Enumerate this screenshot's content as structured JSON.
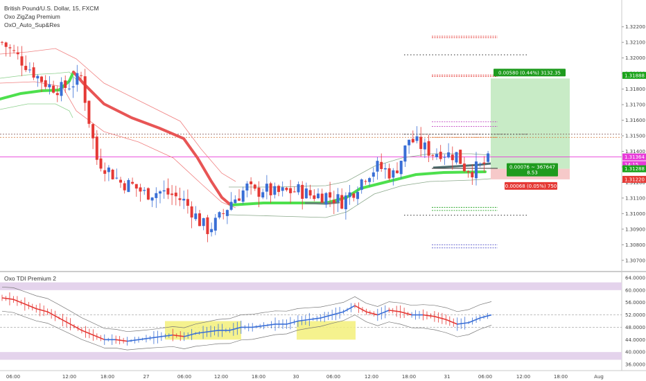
{
  "header": {
    "symbol_line": "British Pound/U.S. Dollar, 15, FXCM",
    "indicator_1": "Oxo ZigZag Premium",
    "indicator_2": "OxO_Auto_Sup&Res"
  },
  "lower_pane": {
    "title": "Oxo TDI Premium 2"
  },
  "colors": {
    "candle_up": "#3a6fd6",
    "candle_down": "#e53935",
    "ema_green": "#4de04d",
    "ema_red": "#e85555",
    "long_target": "#c8ebc6",
    "long_stop": "#f6c9c9",
    "tdi_band": "#e4d3ec",
    "tdi_fill": "#f3f07a"
  },
  "chart_data": [
    {
      "type": "candlestick",
      "title": "British Pound/U.S. Dollar, 15, FXCM",
      "xlabel": "",
      "ylabel": "",
      "ylim": [
        1.3065,
        1.3235
      ],
      "y_ticks": [
        "1.32200",
        "1.32100",
        "1.32000",
        "1.31900",
        "1.31800",
        "1.31700",
        "1.31600",
        "1.31500",
        "1.31400",
        "1.31300",
        "1.31200",
        "1.31100",
        "1.31000",
        "1.30900",
        "1.30800",
        "1.30700"
      ],
      "x_ticks": [
        "06:00",
        "12:00",
        "18:00",
        "27",
        "06:00",
        "12:00",
        "18:00",
        "30",
        "06:00",
        "12:00",
        "18:00",
        "31",
        "06:00",
        "12:00",
        "18:00",
        "Aug"
      ],
      "close_path": [
        [
          0,
          1.321
        ],
        [
          3,
          1.3203
        ],
        [
          6,
          1.3196
        ],
        [
          9,
          1.3188
        ],
        [
          12,
          1.3182
        ],
        [
          15,
          1.318
        ],
        [
          18,
          1.3184
        ],
        [
          20,
          1.3188
        ],
        [
          22,
          1.316
        ],
        [
          24,
          1.3135
        ],
        [
          27,
          1.3128
        ],
        [
          30,
          1.312
        ],
        [
          33,
          1.3118
        ],
        [
          36,
          1.3113
        ],
        [
          40,
          1.3114
        ],
        [
          43,
          1.3112
        ],
        [
          46,
          1.3108
        ],
        [
          48,
          1.3102
        ],
        [
          50,
          1.3095
        ],
        [
          52,
          1.309
        ],
        [
          54,
          1.3094
        ],
        [
          56,
          1.31
        ],
        [
          58,
          1.3108
        ],
        [
          60,
          1.3112
        ],
        [
          62,
          1.3117
        ],
        [
          64,
          1.3113
        ],
        [
          66,
          1.3116
        ],
        [
          69,
          1.3113
        ],
        [
          72,
          1.3114
        ],
        [
          75,
          1.3115
        ],
        [
          78,
          1.3112
        ],
        [
          82,
          1.3112
        ],
        [
          86,
          1.3108
        ],
        [
          89,
          1.3115
        ],
        [
          92,
          1.3125
        ],
        [
          95,
          1.313
        ],
        [
          97,
          1.3128
        ],
        [
          99,
          1.3125
        ],
        [
          101,
          1.3135
        ],
        [
          103,
          1.3148
        ],
        [
          105,
          1.3145
        ],
        [
          107,
          1.3142
        ],
        [
          109,
          1.3139
        ],
        [
          111,
          1.314
        ],
        [
          113,
          1.3138
        ],
        [
          115,
          1.3138
        ],
        [
          117,
          1.313
        ],
        [
          119,
          1.3128
        ],
        [
          121,
          1.313
        ],
        [
          123,
          1.3134
        ]
      ],
      "series": [
        {
          "name": "Oxo ZigZag Premium",
          "values": []
        },
        {
          "name": "OxO_Auto_Sup&Res",
          "values": []
        }
      ],
      "price_labels": [
        {
          "text": "1.31888",
          "color": "#1aa31a"
        },
        {
          "text": "1.31364",
          "color": "#e83ad9"
        },
        {
          "text": "14:15",
          "color": "#e83ad9"
        },
        {
          "text": "1.31288",
          "color": "#1aa31a"
        },
        {
          "text": "1.31220",
          "color": "#e53935"
        }
      ],
      "position_tool": {
        "target_label": "0.00580 (0.44%) 3132.35",
        "mid_label_1": "0.00076 ~ 367647",
        "mid_label_2": "8.53",
        "stop_label": "0.00068 (0.05%) 750",
        "entry": 1.31288,
        "target": 1.31868,
        "stop": 1.3122
      },
      "support_resistance": [
        {
          "price": 1.3214,
          "color": "#e53935"
        },
        {
          "price": 1.3213,
          "color": "#e53935"
        },
        {
          "price": 1.3202,
          "color": "#555555"
        },
        {
          "price": 1.3189,
          "color": "#e53935"
        },
        {
          "price": 1.3188,
          "color": "#e53935"
        },
        {
          "price": 1.3159,
          "color": "#c044c0"
        },
        {
          "price": 1.3156,
          "color": "#c044c0"
        },
        {
          "price": 1.3151,
          "color": "#555555"
        },
        {
          "price": 1.3149,
          "color": "#e07030"
        },
        {
          "price": 1.3104,
          "color": "#2ea82e"
        },
        {
          "price": 1.3102,
          "color": "#2ea82e"
        },
        {
          "price": 1.3099,
          "color": "#555555"
        },
        {
          "price": 1.308,
          "color": "#5555cc"
        },
        {
          "price": 1.3078,
          "color": "#5555cc"
        }
      ]
    },
    {
      "type": "line",
      "title": "Oxo TDI Premium 2",
      "ylim": [
        34,
        66
      ],
      "y_ticks": [
        "64.0000",
        "60.0000",
        "56.0000",
        "52.0000",
        "48.0000",
        "44.0000",
        "40.0000",
        "36.0000"
      ],
      "bands": [
        [
          60,
          62.5
        ],
        [
          37.5,
          40
        ]
      ],
      "midline": 50,
      "series": [
        {
          "name": "",
          "values": [
            57.5,
            57,
            55.5,
            54,
            53,
            51,
            49,
            47,
            45.5,
            44,
            44,
            43.5,
            44,
            44.5,
            45,
            45.5,
            45,
            46,
            46.5,
            47,
            47,
            48,
            48,
            48.5,
            49,
            49,
            50,
            50.5,
            51,
            52,
            53,
            55,
            53,
            52,
            53.5,
            53,
            52,
            52,
            51.5,
            50.5,
            49,
            49.5,
            51,
            52
          ]
        }
      ]
    }
  ]
}
